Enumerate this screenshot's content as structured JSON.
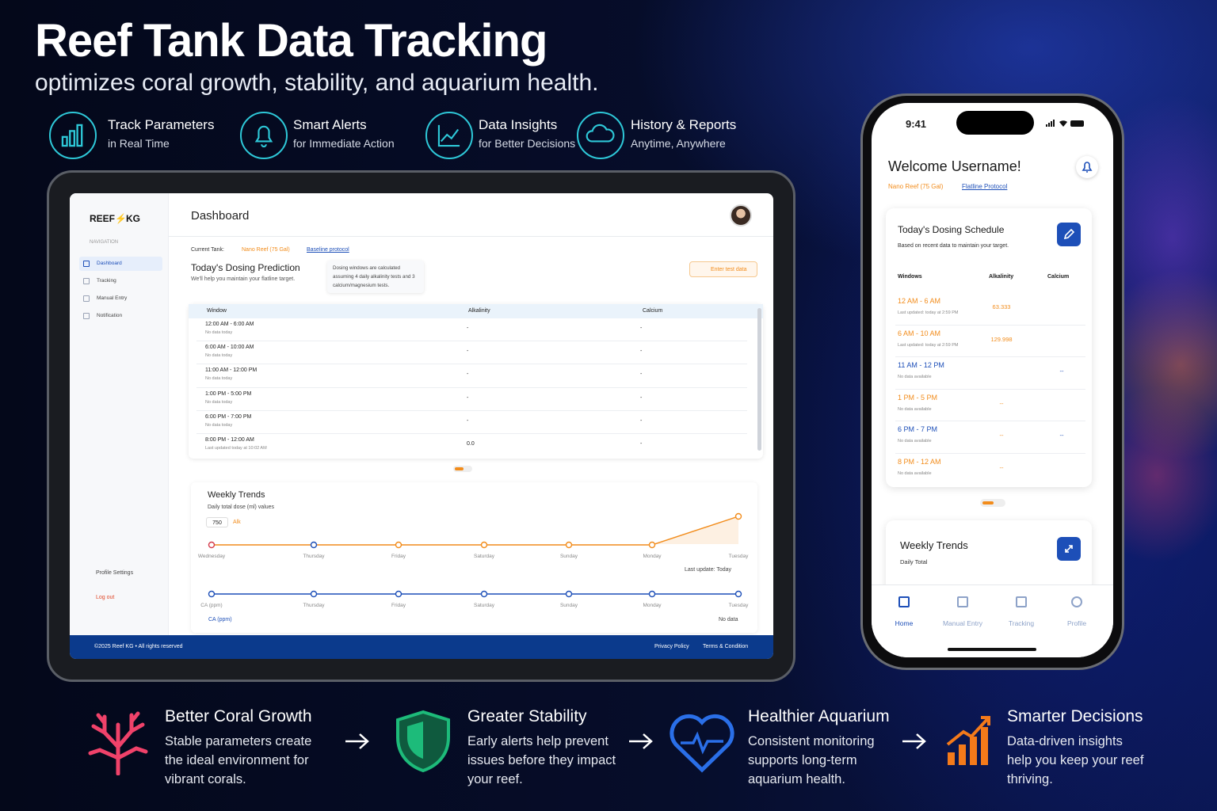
{
  "header": {
    "title": "Reef Tank Data Tracking",
    "subtitle": "optimizes coral growth, stability, and aquarium health."
  },
  "features": [
    {
      "title": "Track Parameters",
      "subtitle": "in Real Time"
    },
    {
      "title": "Smart Alerts",
      "subtitle": "for Immediate Action"
    },
    {
      "title": "Data Insights",
      "subtitle": "for Better Decisions"
    },
    {
      "title": "History & Reports",
      "subtitle": "Anytime, Anywhere"
    }
  ],
  "tablet": {
    "logo_left": "REEF",
    "logo_right": "KG",
    "nav_heading": "NAVIGATION",
    "nav": [
      "Dashboard",
      "Tracking",
      "Manual Entry",
      "Notification"
    ],
    "profile": "Profile Settings",
    "logout": "Log out",
    "page_title": "Dashboard",
    "current_tank_label": "Current Tank:",
    "tank": "Nano Reef (75 Gal)",
    "protocol": "Baseline protocol",
    "prediction_title": "Today's Dosing Prediction",
    "prediction_sub": "We'll help you maintain your flatline target.",
    "prediction_note": "Dosing windows are calculated assuming 4 daily alkalinity tests and 3 calcium/magnesium tests.",
    "enter_button": "Enter test data",
    "table": {
      "headers": [
        "Window",
        "Alkalinity",
        "Calcium"
      ],
      "rows": [
        {
          "window": "12:00 AM - 6:00 AM",
          "note": "No data today",
          "alkalinity": "-",
          "calcium": "-"
        },
        {
          "window": "6:00 AM - 10:00 AM",
          "note": "No data today",
          "alkalinity": "-",
          "calcium": "-"
        },
        {
          "window": "11:00 AM - 12:00 PM",
          "note": "No data today",
          "alkalinity": "-",
          "calcium": "-"
        },
        {
          "window": "1:00 PM - 5:00 PM",
          "note": "No data today",
          "alkalinity": "-",
          "calcium": "-"
        },
        {
          "window": "6:00 PM - 7:00 PM",
          "note": "No data today",
          "alkalinity": "-",
          "calcium": "-"
        },
        {
          "window": "8:00 PM - 12:00 AM",
          "note": "Last updated today at 10:02 AM",
          "alkalinity": "0.0",
          "calcium": "-"
        }
      ]
    },
    "trends": {
      "title": "Weekly Trends",
      "subtitle": "Daily total dose (ml) values",
      "dose_value": "750",
      "alk_label": "Alk",
      "days": [
        "Wednesday",
        "Thursday",
        "Friday",
        "Saturday",
        "Sunday",
        "Monday",
        "Tuesday"
      ],
      "alk_status": "Last update: Today",
      "ca_days": [
        "CA (ppm)",
        "Thursday",
        "Friday",
        "Saturday",
        "Sunday",
        "Monday",
        "Tuesday"
      ],
      "ca_legend": "CA (ppm)",
      "ca_status": "No data"
    },
    "footer": {
      "copyright": "©2025 Reef KG • All rights reserved",
      "links": [
        "Privacy Policy",
        "Terms & Condition"
      ]
    }
  },
  "phone": {
    "time": "9:41",
    "welcome": "Welcome Username!",
    "tank": "Nano Reef (75 Gal)",
    "protocol": "Flatline Protocol",
    "schedule_title": "Today's Dosing Schedule",
    "schedule_sub": "Based on recent data to maintain your target.",
    "headers": [
      "Windows",
      "Alkalinity",
      "Calcium"
    ],
    "rows": [
      {
        "window": "12 AM - 6 AM",
        "note": "Last updated: today at 2:59 PM",
        "alkalinity": "63.333",
        "color": "#f28c1b"
      },
      {
        "window": "6 AM - 10 AM",
        "note": "Last updated: today at 2:59 PM",
        "alkalinity": "129.998",
        "color": "#f28c1b"
      },
      {
        "window": "11 AM - 12 PM",
        "note": "No data available",
        "calcium": "--",
        "color": "#1d4fb8"
      },
      {
        "window": "1 PM - 5 PM",
        "note": "No data available",
        "alkalinity": "--",
        "color": "#f28c1b"
      },
      {
        "window": "6 PM - 7 PM",
        "note": "No data available",
        "alkalinity": "--",
        "calcium": "--",
        "color": "#1d4fb8"
      },
      {
        "window": "8 PM - 12 AM",
        "note": "No data available",
        "alkalinity": "--",
        "color": "#f28c1b"
      }
    ],
    "trends_title": "Weekly Trends",
    "trends_sub": "Daily Total",
    "tabs": [
      "Home",
      "Manual Entry",
      "Tracking",
      "Profile"
    ]
  },
  "benefits": [
    {
      "title": "Better Coral Growth",
      "text": "Stable parameters create the ideal environment for vibrant corals."
    },
    {
      "title": "Greater Stability",
      "text": "Early alerts help prevent issues before they impact your reef."
    },
    {
      "title": "Healthier Aquarium",
      "text": "Consistent monitoring supports long-term aquarium health."
    },
    {
      "title": "Smarter Decisions",
      "text": "Data-driven insights help you keep your reef thriving."
    }
  ]
}
